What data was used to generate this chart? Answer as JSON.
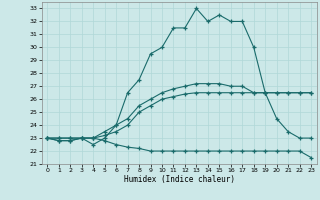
{
  "xlabel": "Humidex (Indice chaleur)",
  "xlim": [
    -0.5,
    23.5
  ],
  "ylim": [
    21,
    33.5
  ],
  "yticks": [
    21,
    22,
    23,
    24,
    25,
    26,
    27,
    28,
    29,
    30,
    31,
    32,
    33
  ],
  "xticks": [
    0,
    1,
    2,
    3,
    4,
    5,
    6,
    7,
    8,
    9,
    10,
    11,
    12,
    13,
    14,
    15,
    16,
    17,
    18,
    19,
    20,
    21,
    22,
    23
  ],
  "bg_color": "#cce8e8",
  "line_color": "#1a6b6b",
  "grid_color": "#b0d8d8",
  "curve_main_x": [
    0,
    1,
    2,
    3,
    4,
    5,
    6,
    7,
    8,
    9,
    10,
    11,
    12,
    13,
    14,
    15,
    16,
    17,
    18,
    19,
    20,
    21,
    22,
    23
  ],
  "curve_main_y": [
    23,
    22.8,
    22.8,
    23,
    22.5,
    23,
    24,
    26.5,
    27.5,
    29.5,
    30,
    31.5,
    31.5,
    33,
    32,
    32.5,
    32,
    32,
    30,
    26.5,
    24.5,
    23.5,
    23,
    23
  ],
  "curve_up_x": [
    0,
    1,
    2,
    3,
    4,
    5,
    6,
    7,
    8,
    9,
    10,
    11,
    12,
    13,
    14,
    15,
    16,
    17,
    18,
    19,
    20,
    21,
    22,
    23
  ],
  "curve_up_y": [
    23,
    23,
    23,
    23,
    23,
    23.5,
    24,
    24.5,
    25.5,
    26,
    26.5,
    26.8,
    27,
    27.2,
    27.2,
    27.2,
    27,
    27,
    26.5,
    26.5,
    26.5,
    26.5,
    26.5,
    26.5
  ],
  "curve_mid_x": [
    0,
    1,
    2,
    3,
    4,
    5,
    6,
    7,
    8,
    9,
    10,
    11,
    12,
    13,
    14,
    15,
    16,
    17,
    18,
    19,
    20,
    21,
    22,
    23
  ],
  "curve_mid_y": [
    23,
    23,
    23,
    23,
    23,
    23.2,
    23.5,
    24,
    25,
    25.5,
    26,
    26.2,
    26.4,
    26.5,
    26.5,
    26.5,
    26.5,
    26.5,
    26.5,
    26.5,
    26.5,
    26.5,
    26.5,
    26.5
  ],
  "curve_low_x": [
    0,
    1,
    2,
    3,
    4,
    5,
    6,
    7,
    8,
    9,
    10,
    11,
    12,
    13,
    14,
    15,
    16,
    17,
    18,
    19,
    20,
    21,
    22,
    23
  ],
  "curve_low_y": [
    23,
    22.8,
    22.8,
    23,
    23,
    22.8,
    22.5,
    22.3,
    22.2,
    22,
    22,
    22,
    22,
    22,
    22,
    22,
    22,
    22,
    22,
    22,
    22,
    22,
    22,
    21.5
  ]
}
